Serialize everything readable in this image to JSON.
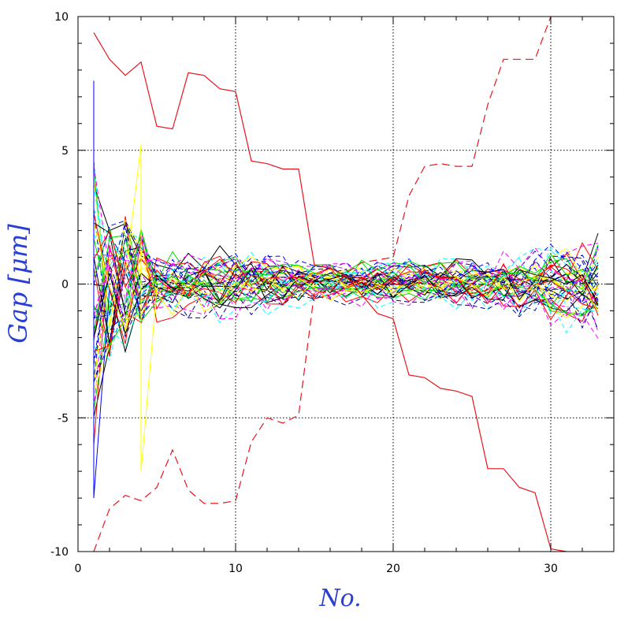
{
  "chart_data": {
    "type": "line",
    "xlabel": "No.",
    "ylabel": "Gap [μm]",
    "xlim": [
      0,
      34
    ],
    "ylim": [
      -10,
      10
    ],
    "x_ticks": [
      0,
      10,
      20,
      30
    ],
    "y_ticks": [
      -10,
      -5,
      0,
      5,
      10
    ],
    "grid": true,
    "grid_style": "dotted at major ticks",
    "colors": {
      "axis_title": "#2a3fd6",
      "envelope": "#e8141c",
      "bundle": [
        "#000000",
        "#0000ff",
        "#ff0000",
        "#00ffff",
        "#00dd00",
        "#ff00ff",
        "#ffff00",
        "#00008b"
      ]
    },
    "envelopes": [
      {
        "style": "solid",
        "x": [
          1,
          2,
          3,
          4,
          5,
          6,
          7,
          8,
          9,
          10,
          11,
          12,
          13,
          14,
          15,
          16,
          17,
          18,
          19,
          20,
          21,
          22,
          23,
          24,
          25,
          26,
          27,
          28,
          29,
          30,
          31
        ],
        "y": [
          9.4,
          8.4,
          7.8,
          8.3,
          5.9,
          5.8,
          7.9,
          7.8,
          7.3,
          7.2,
          4.6,
          4.5,
          4.3,
          4.3,
          0.7,
          0.6,
          0.3,
          -0.4,
          -1.1,
          -1.3,
          -3.4,
          -3.5,
          -3.9,
          -4.0,
          -4.2,
          -6.9,
          -6.9,
          -7.6,
          -7.8,
          -9.9,
          -10.0
        ]
      },
      {
        "style": "dashed",
        "x": [
          1,
          2,
          3,
          4,
          5,
          6,
          7,
          8,
          9,
          10,
          11,
          12,
          13,
          14,
          15,
          16,
          17,
          18,
          19,
          20,
          21,
          22,
          23,
          24,
          25,
          26,
          27,
          28,
          29,
          30
        ],
        "y": [
          -10.0,
          -8.4,
          -7.9,
          -8.1,
          -7.6,
          -6.2,
          -7.7,
          -8.2,
          -8.2,
          -8.1,
          -5.9,
          -5.0,
          -5.2,
          -4.9,
          -0.3,
          -0.3,
          0.4,
          0.8,
          0.9,
          1.0,
          3.3,
          4.4,
          4.5,
          4.4,
          4.4,
          6.7,
          8.4,
          8.4,
          8.4,
          10.0
        ]
      }
    ],
    "bundle": {
      "x_range": [
        1,
        33
      ],
      "line_count": 48,
      "line_styles": [
        "solid",
        "dashed"
      ],
      "node_extents": {
        "x": [
          1,
          2,
          3,
          4,
          5,
          10,
          15,
          20,
          25,
          30,
          33
        ],
        "upper": [
          6.0,
          3.0,
          3.2,
          2.6,
          1.6,
          1.7,
          0.9,
          1.2,
          1.2,
          1.8,
          2.3
        ],
        "lower": [
          -8.0,
          -3.5,
          -3.3,
          -2.0,
          -1.8,
          -1.7,
          -0.9,
          -1.2,
          -1.3,
          -2.0,
          -2.6
        ]
      },
      "notable": [
        {
          "x": 4,
          "y_min": -7.0,
          "y_max": 5.2,
          "color": "#ffff00"
        },
        {
          "x": 1,
          "y_min": -8.0,
          "y_max": 7.6,
          "color": "#0000ff"
        }
      ]
    }
  }
}
